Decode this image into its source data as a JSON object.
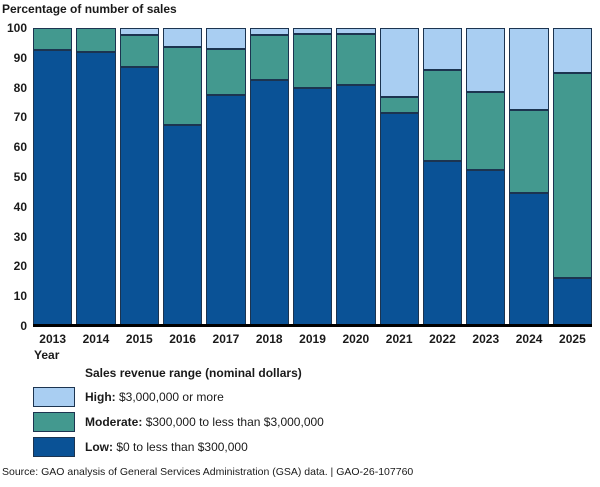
{
  "title": "Percentage of number of sales",
  "chart_data": {
    "type": "bar",
    "stacked": true,
    "title": "Percentage of number of sales",
    "xlabel": "Year",
    "ylabel": "",
    "ylim": [
      0,
      100
    ],
    "yticks": [
      0,
      10,
      20,
      30,
      40,
      50,
      60,
      70,
      80,
      90,
      100
    ],
    "grid": false,
    "legend_position": "bottom",
    "categories": [
      "2013",
      "2014",
      "2015",
      "2016",
      "2017",
      "2018",
      "2019",
      "2020",
      "2021",
      "2022",
      "2023",
      "2024",
      "2025"
    ],
    "series": [
      {
        "name": "Low",
        "color": "#0a5296",
        "values": [
          92.5,
          92,
          87,
          67.5,
          77.5,
          82.5,
          80,
          81,
          71.5,
          55.5,
          52.5,
          44.5,
          16
        ]
      },
      {
        "name": "Moderate",
        "color": "#43998f",
        "values": [
          7.5,
          8,
          10.5,
          26,
          15.5,
          15,
          18,
          17,
          5.5,
          30.5,
          26,
          28,
          69
        ]
      },
      {
        "name": "High",
        "color": "#a9cef2",
        "values": [
          0,
          0,
          2.5,
          6.5,
          7,
          2.5,
          2,
          2,
          23,
          14,
          21.5,
          27.5,
          15
        ]
      }
    ]
  },
  "legend": {
    "title": "Sales revenue range (nominal dollars)",
    "items": [
      {
        "label": "High:",
        "desc": "$3,000,000 or more",
        "color": "#a9cef2"
      },
      {
        "label": "Moderate:",
        "desc": "$300,000 to less than $3,000,000",
        "color": "#43998f"
      },
      {
        "label": "Low:",
        "desc": "$0 to less than $300,000",
        "color": "#0a5296"
      }
    ]
  },
  "axes": {
    "x_title": "Year"
  },
  "source": "Source: GAO analysis of General Services Administration (GSA) data.  |  GAO-26-107760",
  "colors": {
    "segment_border": "#1c3450",
    "axis_line": "#000000",
    "background": "#ffffff"
  }
}
